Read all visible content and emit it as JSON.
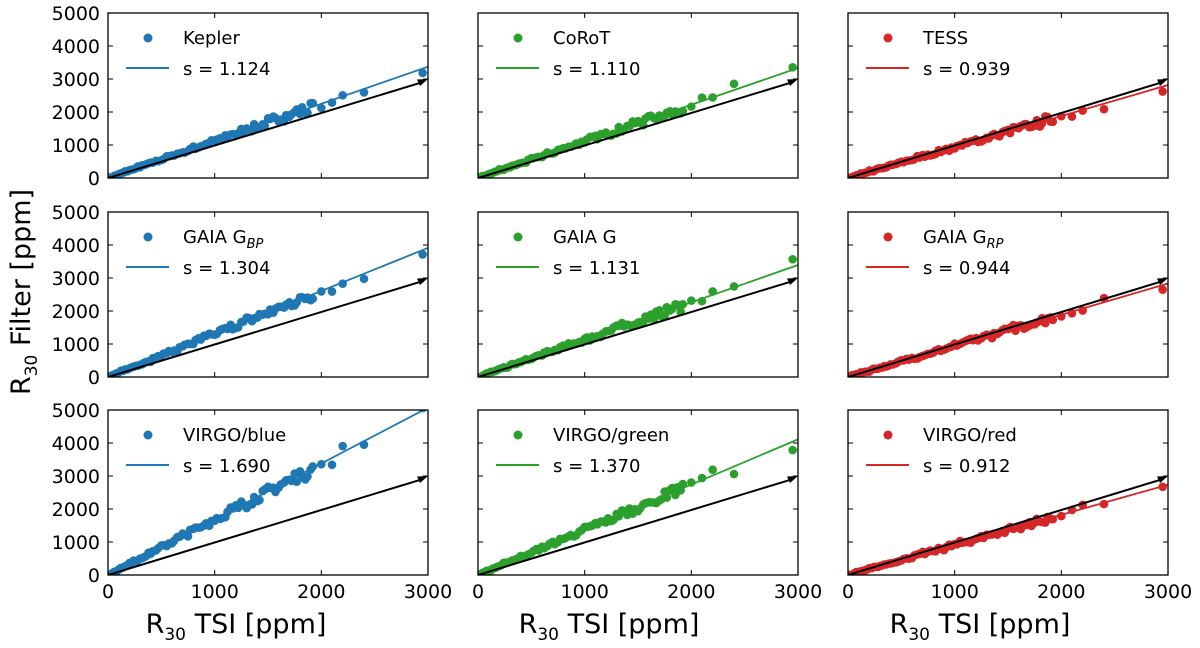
{
  "figure": {
    "ylabel_main": "R",
    "ylabel_sub": "30",
    "ylabel_rest": " Filter [ppm]",
    "xlabel_main": "R",
    "xlabel_sub": "30",
    "xlabel_rest": " TSI [ppm]"
  },
  "colors": {
    "blue": "#1f77b4",
    "green": "#2ca02c",
    "red": "#d62728",
    "reference": "#000000"
  },
  "chart_data": [
    {
      "type": "scatter",
      "row": 0,
      "col": 0,
      "legend_main": "Kepler",
      "legend_sub": "",
      "slope": 1.124,
      "slope_label": "s = 1.124",
      "color": "#1f77b4",
      "xlim": [
        0,
        3000
      ],
      "ylim": [
        0,
        5000
      ],
      "reference_slope": 1.0
    },
    {
      "type": "scatter",
      "row": 0,
      "col": 1,
      "legend_main": "CoRoT",
      "legend_sub": "",
      "slope": 1.11,
      "slope_label": "s = 1.110",
      "color": "#2ca02c",
      "xlim": [
        0,
        3000
      ],
      "ylim": [
        0,
        5000
      ],
      "reference_slope": 1.0
    },
    {
      "type": "scatter",
      "row": 0,
      "col": 2,
      "legend_main": "TESS",
      "legend_sub": "",
      "slope": 0.939,
      "slope_label": "s = 0.939",
      "color": "#d62728",
      "xlim": [
        0,
        3000
      ],
      "ylim": [
        0,
        5000
      ],
      "reference_slope": 1.0
    },
    {
      "type": "scatter",
      "row": 1,
      "col": 0,
      "legend_main": "GAIA G",
      "legend_sub": "BP",
      "slope": 1.304,
      "slope_label": "s = 1.304",
      "color": "#1f77b4",
      "xlim": [
        0,
        3000
      ],
      "ylim": [
        0,
        5000
      ],
      "reference_slope": 1.0
    },
    {
      "type": "scatter",
      "row": 1,
      "col": 1,
      "legend_main": "GAIA G",
      "legend_sub": "",
      "slope": 1.131,
      "slope_label": "s = 1.131",
      "color": "#2ca02c",
      "xlim": [
        0,
        3000
      ],
      "ylim": [
        0,
        5000
      ],
      "reference_slope": 1.0
    },
    {
      "type": "scatter",
      "row": 1,
      "col": 2,
      "legend_main": "GAIA G",
      "legend_sub": "RP",
      "slope": 0.944,
      "slope_label": "s = 0.944",
      "color": "#d62728",
      "xlim": [
        0,
        3000
      ],
      "ylim": [
        0,
        5000
      ],
      "reference_slope": 1.0
    },
    {
      "type": "scatter",
      "row": 2,
      "col": 0,
      "legend_main": "VIRGO/blue",
      "legend_sub": "",
      "slope": 1.69,
      "slope_label": "s = 1.690",
      "color": "#1f77b4",
      "xlim": [
        0,
        3000
      ],
      "ylim": [
        0,
        5000
      ],
      "reference_slope": 1.0
    },
    {
      "type": "scatter",
      "row": 2,
      "col": 1,
      "legend_main": "VIRGO/green",
      "legend_sub": "",
      "slope": 1.37,
      "slope_label": "s = 1.370",
      "color": "#2ca02c",
      "xlim": [
        0,
        3000
      ],
      "ylim": [
        0,
        5000
      ],
      "reference_slope": 1.0
    },
    {
      "type": "scatter",
      "row": 2,
      "col": 2,
      "legend_main": "VIRGO/red",
      "legend_sub": "",
      "slope": 0.912,
      "slope_label": "s = 0.912",
      "color": "#d62728",
      "xlim": [
        0,
        3000
      ],
      "ylim": [
        0,
        5000
      ],
      "reference_slope": 1.0
    }
  ],
  "sample_x": [
    0,
    40,
    80,
    120,
    160,
    200,
    240,
    280,
    320,
    360,
    400,
    450,
    500,
    550,
    600,
    650,
    700,
    750,
    800,
    850,
    900,
    950,
    1000,
    1050,
    1100,
    1150,
    1200,
    1250,
    1300,
    1350,
    1400,
    1450,
    1500,
    1550,
    1600,
    1650,
    1700,
    1750,
    1800,
    1850,
    1900,
    2000,
    2100,
    2200,
    2400,
    2950
  ],
  "x_ticks": [
    0,
    1000,
    2000,
    3000
  ],
  "x_tick_labels": [
    "0",
    "1000",
    "2000",
    "3000"
  ],
  "y_ticks": [
    0,
    1000,
    2000,
    3000,
    4000,
    5000
  ],
  "y_tick_labels": [
    "0",
    "1000",
    "2000",
    "3000",
    "4000",
    "5000"
  ]
}
